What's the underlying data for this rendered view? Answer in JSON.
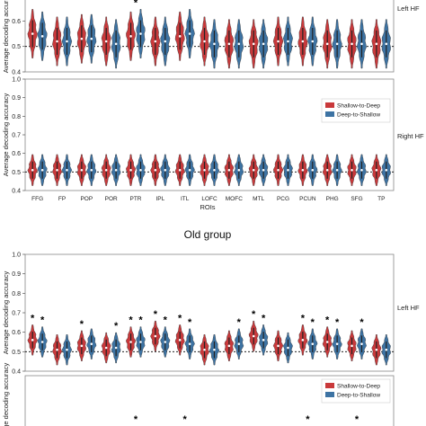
{
  "figure": {
    "group_title": "Old group",
    "rois_label": "ROIs"
  },
  "colors": {
    "shallow_to_deep": "#c9393b",
    "deep_to_shallow": "#3d73a3",
    "chance_line": "#000000",
    "axis": "#555555"
  },
  "chart_data": [
    {
      "type": "violin",
      "panel": "top-left-hf-partial",
      "ylabel": "Average decoding accuracy",
      "side_label": "Left HF",
      "ylim": [
        0.4,
        0.7
      ],
      "yticks": [
        "0.6",
        "0.5",
        "0.4"
      ],
      "chance": 0.5,
      "categories": [
        "FFG",
        "FP",
        "POP",
        "POR",
        "PTR",
        "IPL",
        "ITL",
        "LOFC",
        "MOFC",
        "MTL",
        "PCG",
        "PCUN",
        "PHG",
        "SFG",
        "TP"
      ],
      "series": [
        {
          "name": "Shallow-to-Deep",
          "medians": [
            0.55,
            0.52,
            0.53,
            0.52,
            0.54,
            0.52,
            0.54,
            0.52,
            0.51,
            0.51,
            0.52,
            0.52,
            0.51,
            0.51,
            0.51
          ]
        },
        {
          "name": "Deep-to-Shallow",
          "medians": [
            0.54,
            0.52,
            0.53,
            0.51,
            0.55,
            0.52,
            0.55,
            0.51,
            0.51,
            0.51,
            0.52,
            0.52,
            0.51,
            0.51,
            0.51
          ]
        }
      ],
      "significance": [
        "",
        "",
        "",
        "",
        "*",
        "",
        "",
        "",
        "",
        "",
        "",
        "",
        "",
        "",
        ""
      ]
    },
    {
      "type": "violin",
      "panel": "right-hf-young",
      "ylabel": "Average decoding accuracy",
      "side_label": "Right HF",
      "ylim": [
        0.4,
        1.0
      ],
      "yticks": [
        "1.0",
        "0.9",
        "0.8",
        "0.7",
        "0.6",
        "0.5",
        "0.4"
      ],
      "chance": 0.5,
      "xlabel": "ROIs",
      "categories": [
        "FFG",
        "FP",
        "POP",
        "POR",
        "PTR",
        "IPL",
        "ITL",
        "LOFC",
        "MOFC",
        "MTL",
        "PCG",
        "PCUN",
        "PHG",
        "SFG",
        "TP"
      ],
      "legend": [
        "Shallow-to-Deep",
        "Deep-to-Shallow"
      ],
      "series": [
        {
          "name": "Shallow-to-Deep",
          "medians": [
            0.51,
            0.51,
            0.51,
            0.51,
            0.51,
            0.51,
            0.51,
            0.51,
            0.51,
            0.51,
            0.51,
            0.51,
            0.51,
            0.51,
            0.51
          ]
        },
        {
          "name": "Deep-to-Shallow",
          "medians": [
            0.51,
            0.51,
            0.51,
            0.51,
            0.51,
            0.51,
            0.51,
            0.51,
            0.51,
            0.51,
            0.51,
            0.51,
            0.51,
            0.51,
            0.51
          ]
        }
      ],
      "significance": [
        "",
        "",
        "",
        "",
        "",
        "",
        "",
        "",
        "",
        "",
        "",
        "",
        "",
        "",
        ""
      ]
    },
    {
      "type": "violin",
      "panel": "old-left-hf",
      "ylabel": "Average decoding accuracy",
      "side_label": "Left HF",
      "ylim": [
        0.4,
        1.0
      ],
      "yticks": [
        "1.0",
        "0.9",
        "0.8",
        "0.7",
        "0.6",
        "0.5",
        "0.4"
      ],
      "chance": 0.5,
      "categories": [
        "FFG",
        "FP",
        "POP",
        "POR",
        "PTR",
        "IPL",
        "ITL",
        "LOFC",
        "MOFC",
        "MTL",
        "PCG",
        "PCUN",
        "PHG",
        "SFG",
        "TP"
      ],
      "series": [
        {
          "name": "Shallow-to-Deep",
          "medians": [
            0.56,
            0.51,
            0.53,
            0.52,
            0.55,
            0.58,
            0.56,
            0.51,
            0.53,
            0.58,
            0.53,
            0.56,
            0.55,
            0.53,
            0.51
          ]
        },
        {
          "name": "Deep-to-Shallow",
          "medians": [
            0.55,
            0.51,
            0.54,
            0.52,
            0.55,
            0.55,
            0.54,
            0.51,
            0.54,
            0.56,
            0.52,
            0.54,
            0.54,
            0.54,
            0.51
          ]
        }
      ],
      "significance_s2d": [
        "*",
        "",
        "*",
        "",
        "*",
        "*",
        "*",
        "",
        "",
        "*",
        "",
        "*",
        "*",
        "",
        ""
      ],
      "significance_d2s": [
        "*",
        "",
        "",
        "*",
        "*",
        "*",
        "*",
        "",
        "*",
        "*",
        "",
        "*",
        "*",
        "*",
        ""
      ]
    },
    {
      "type": "violin",
      "panel": "old-right-hf-partial",
      "ylabel": "Average decoding accuracy",
      "legend": [
        "Shallow-to-Deep",
        "Deep-to-Shallow"
      ],
      "significance": [
        "",
        "",
        "",
        "",
        "*",
        "",
        "*",
        "",
        "",
        "",
        "",
        "*",
        "",
        "*",
        ""
      ]
    }
  ]
}
